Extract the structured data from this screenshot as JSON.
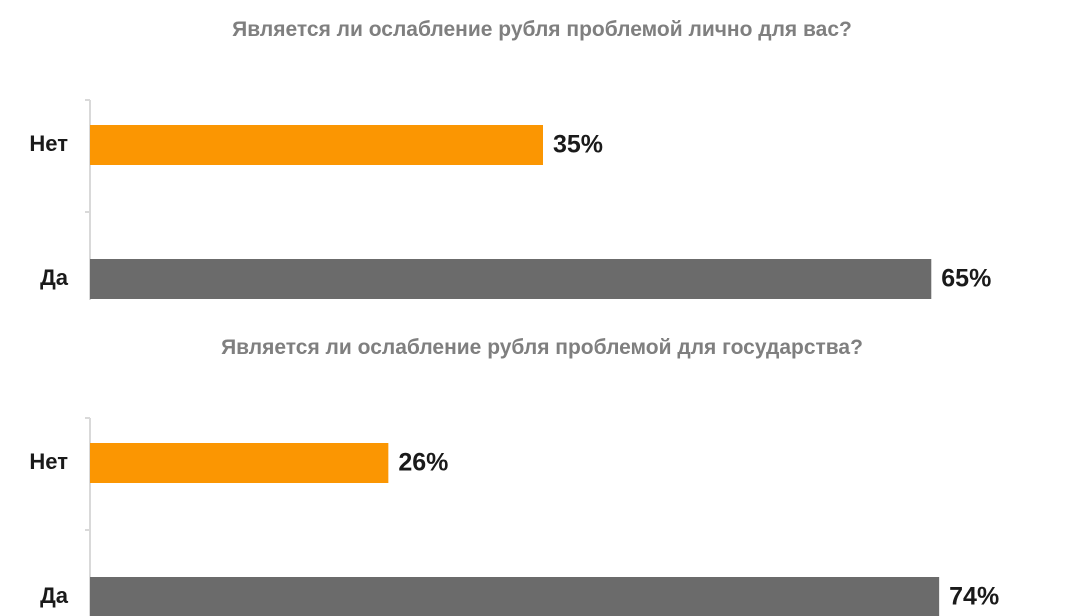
{
  "colors": {
    "no": "#fb9602",
    "yes": "#6b6b6b",
    "axis": "#d9d9d9"
  },
  "chart_data": [
    {
      "type": "bar",
      "orientation": "horizontal",
      "title": "Является ли ослабление рубля проблемой лично для вас?",
      "categories": [
        "Нет",
        "Да"
      ],
      "values": [
        35,
        65
      ],
      "value_labels": [
        "35%",
        "65%"
      ],
      "xlim": [
        0,
        70
      ],
      "grid": false
    },
    {
      "type": "bar",
      "orientation": "horizontal",
      "title": "Является ли ослабление рубля проблемой для государства?",
      "categories": [
        "Нет",
        "Да"
      ],
      "values": [
        26,
        74
      ],
      "value_labels": [
        "26%",
        "74%"
      ],
      "xlim": [
        0,
        80
      ],
      "grid": false
    }
  ]
}
